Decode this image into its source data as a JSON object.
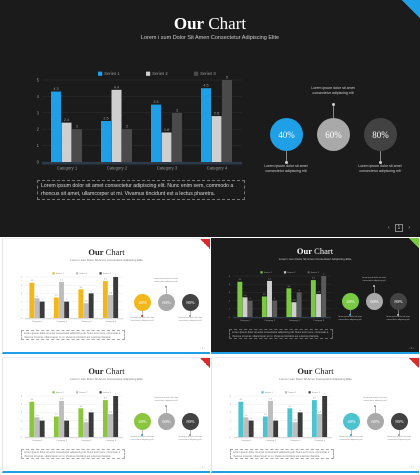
{
  "main": {
    "title_bold": "Our",
    "title_rest": " Chart",
    "subtitle": "Lorem i sum Dolor Sit Amen Consectetur Adipiscing Elite",
    "paragraph": "Lorem ipsum dolor sit amet consectetur adipiscing elit. Nunc enim sem, commodo a rhoncus sit amet, ullamcorper ut mi. Vivamus tincidunt est a lectus pharetra.",
    "accent": "#1e9fe6",
    "circles": [
      {
        "label": "40%",
        "color": "#1e9fe6"
      },
      {
        "label": "60%",
        "color": "#a9a9a9"
      },
      {
        "label": "80%",
        "color": "#424242"
      }
    ],
    "annotations": [
      "Lorem ipsum dolor sit amet consectetur adipiscing elit",
      "Lorem ipsum dolor sit amet consectetur adipiscing elit",
      "Lorem ipsum dolor sit amet consectetur adipiscing elit"
    ],
    "pager": {
      "prev": "‹",
      "num": "1",
      "next": "›"
    }
  },
  "chart_data": {
    "type": "bar",
    "categories": [
      "Category 1",
      "Category 2",
      "Category 3",
      "Category 4"
    ],
    "series": [
      {
        "name": "Series 1",
        "values": [
          4.3,
          2.5,
          3.5,
          4.5
        ]
      },
      {
        "name": "Series 2",
        "values": [
          2.4,
          4.4,
          1.8,
          2.8
        ]
      },
      {
        "name": "Series 3",
        "values": [
          2,
          2,
          3,
          5
        ]
      }
    ],
    "ylim": [
      0,
      5
    ],
    "yticks": [
      "0",
      "1",
      "2",
      "3",
      "4",
      "5"
    ],
    "legend_position": "top"
  },
  "thumbnails": [
    {
      "theme": "light",
      "accent": "#f2b81b",
      "corner": "#d92b2b",
      "circle_first": "#f2b81b",
      "dot": "#d92b2b"
    },
    {
      "theme": "dark",
      "accent": "#7ac943",
      "corner": "#7ac943",
      "circle_first": "#7ac943",
      "dot": "#3fa9f5"
    },
    {
      "theme": "light",
      "accent": "#8cc63f",
      "corner": "#d92b2b",
      "circle_first": "#8cc63f",
      "dot": "#1e9fe6"
    },
    {
      "theme": "light",
      "accent": "#4ec3d0",
      "corner": "#d92b2b",
      "circle_first": "#4ec3d0",
      "dot": "#1e9fe6"
    }
  ],
  "thumb_text": {
    "title_bold": "Our",
    "title_rest": " Chart",
    "subtitle": "Lorem i sum Dolor Sit Amen Consectetur Adipiscing Elite",
    "paragraph": "Lorem ipsum dolor sit amet consectetur adipiscing elit. Nunc enim sem, commodo a rhoncus sit amet, ullamcorper ut mi. Vivamus tincidunt est a lectus pharetra.",
    "circles": [
      "40%",
      "60%",
      "80%"
    ],
    "annotation": "Lorem ipsum dolor sit amet consectetur adipiscing elit",
    "pager": "‹ 1 ›"
  }
}
